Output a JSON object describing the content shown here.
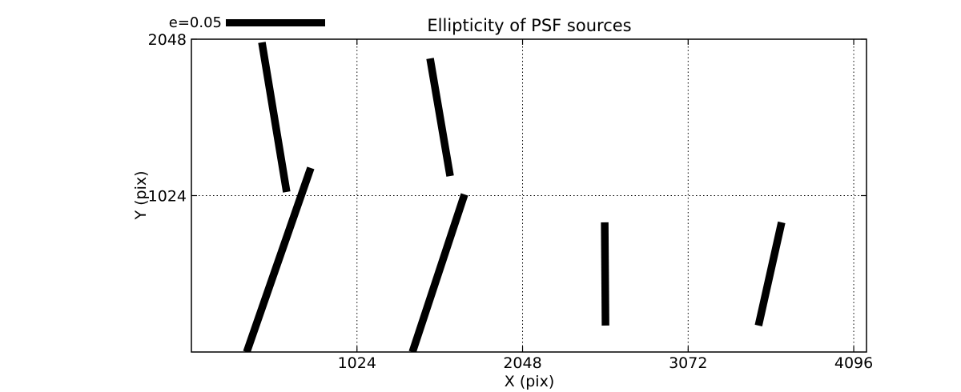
{
  "chart_data": {
    "type": "stick",
    "title": "Ellipticity of PSF sources",
    "xlabel": "X (pix)",
    "ylabel": "Y (pix)",
    "xlim": [
      0,
      4175
    ],
    "ylim": [
      0,
      2048
    ],
    "xticks": [
      1024,
      2048,
      3072,
      4096
    ],
    "yticks": [
      1024,
      2048
    ],
    "grid": "dotted",
    "legend": {
      "label": "e=0.05",
      "position": "top-left"
    },
    "colors": {
      "stroke": "#000000",
      "background": "#ffffff"
    },
    "segment_stroke_width": 9.5,
    "segments": [
      {
        "x1": 436,
        "y1": 2027,
        "x2": 589,
        "y2": 1048
      },
      {
        "x1": 738,
        "y1": 1205,
        "x2": 342,
        "y2": 0
      },
      {
        "x1": 1476,
        "y1": 1922,
        "x2": 1600,
        "y2": 1152
      },
      {
        "x1": 1689,
        "y1": 1032,
        "x2": 1367,
        "y2": 0
      },
      {
        "x1": 2556,
        "y1": 849,
        "x2": 2561,
        "y2": 173
      },
      {
        "x1": 3650,
        "y1": 849,
        "x2": 3507,
        "y2": 173
      }
    ]
  }
}
